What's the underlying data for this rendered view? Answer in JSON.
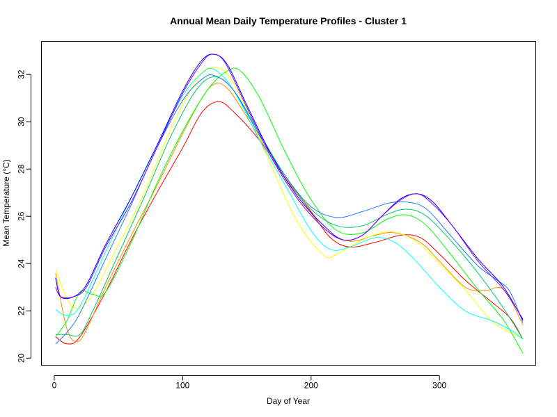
{
  "chart_data": {
    "type": "line",
    "title": "Annual Mean Daily Temperature Profiles - Cluster 1",
    "xlabel": "Day of Year",
    "ylabel": "Mean Temperature (°C)",
    "xlim": [
      -10,
      375
    ],
    "ylim": [
      19.7,
      33.4
    ],
    "x_ticks": [
      0,
      100,
      200,
      300
    ],
    "y_ticks": [
      20,
      22,
      24,
      26,
      28,
      30,
      32
    ],
    "grid": false,
    "legend": "none",
    "series": [
      {
        "color": "#FF0000",
        "points": [
          [
            1,
            20.9
          ],
          [
            10,
            20.6
          ],
          [
            20,
            20.9
          ],
          [
            40,
            22.8
          ],
          [
            60,
            25.0
          ],
          [
            80,
            27.0
          ],
          [
            100,
            28.9
          ],
          [
            115,
            30.4
          ],
          [
            128,
            30.85
          ],
          [
            140,
            30.4
          ],
          [
            160,
            29.2
          ],
          [
            180,
            27.6
          ],
          [
            200,
            26.2
          ],
          [
            215,
            25.1
          ],
          [
            230,
            24.7
          ],
          [
            250,
            24.9
          ],
          [
            270,
            25.2
          ],
          [
            285,
            25.1
          ],
          [
            300,
            24.4
          ],
          [
            320,
            23.3
          ],
          [
            340,
            22.4
          ],
          [
            355,
            21.7
          ],
          [
            365,
            20.8
          ]
        ]
      },
      {
        "color": "#FF8C00",
        "points": [
          [
            1,
            23.6
          ],
          [
            10,
            21.2
          ],
          [
            18,
            20.7
          ],
          [
            25,
            21.2
          ],
          [
            40,
            23.0
          ],
          [
            60,
            25.2
          ],
          [
            80,
            27.3
          ],
          [
            100,
            29.5
          ],
          [
            115,
            31.0
          ],
          [
            125,
            31.6
          ],
          [
            135,
            31.4
          ],
          [
            150,
            30.2
          ],
          [
            170,
            28.4
          ],
          [
            190,
            26.9
          ],
          [
            210,
            25.5
          ],
          [
            230,
            24.95
          ],
          [
            250,
            25.2
          ],
          [
            265,
            25.3
          ],
          [
            285,
            24.9
          ],
          [
            300,
            24.1
          ],
          [
            320,
            23.0
          ],
          [
            335,
            22.85
          ],
          [
            350,
            22.9
          ],
          [
            365,
            21.4
          ]
        ]
      },
      {
        "color": "#FFFF00",
        "points": [
          [
            1,
            23.75
          ],
          [
            10,
            22.5
          ],
          [
            18,
            22.1
          ],
          [
            30,
            22.7
          ],
          [
            50,
            24.8
          ],
          [
            70,
            27.0
          ],
          [
            90,
            29.6
          ],
          [
            110,
            31.7
          ],
          [
            122,
            32.3
          ],
          [
            135,
            32.0
          ],
          [
            150,
            30.5
          ],
          [
            170,
            28.0
          ],
          [
            190,
            25.7
          ],
          [
            210,
            24.35
          ],
          [
            220,
            24.4
          ],
          [
            240,
            25.0
          ],
          [
            260,
            25.35
          ],
          [
            280,
            25.0
          ],
          [
            300,
            24.0
          ],
          [
            320,
            22.9
          ],
          [
            340,
            21.6
          ],
          [
            355,
            21.1
          ],
          [
            365,
            20.85
          ]
        ]
      },
      {
        "color": "#00FF00",
        "points": [
          [
            1,
            20.9
          ],
          [
            10,
            21.6
          ],
          [
            20,
            22.8
          ],
          [
            30,
            22.7
          ],
          [
            40,
            22.8
          ],
          [
            60,
            24.9
          ],
          [
            80,
            27.4
          ],
          [
            100,
            29.6
          ],
          [
            120,
            31.4
          ],
          [
            135,
            32.15
          ],
          [
            145,
            32.15
          ],
          [
            160,
            31.0
          ],
          [
            180,
            28.7
          ],
          [
            200,
            26.7
          ],
          [
            220,
            25.4
          ],
          [
            240,
            25.3
          ],
          [
            260,
            25.9
          ],
          [
            275,
            26.05
          ],
          [
            290,
            25.6
          ],
          [
            310,
            24.3
          ],
          [
            330,
            22.9
          ],
          [
            350,
            21.6
          ],
          [
            365,
            20.2
          ]
        ]
      },
      {
        "color": "#00CC66",
        "points": [
          [
            1,
            21.0
          ],
          [
            10,
            21.0
          ],
          [
            20,
            21.0
          ],
          [
            30,
            22.0
          ],
          [
            50,
            24.4
          ],
          [
            70,
            26.8
          ],
          [
            90,
            29.3
          ],
          [
            110,
            31.3
          ],
          [
            125,
            31.9
          ],
          [
            140,
            31.3
          ],
          [
            160,
            29.5
          ],
          [
            180,
            27.7
          ],
          [
            200,
            26.3
          ],
          [
            220,
            25.6
          ],
          [
            240,
            25.6
          ],
          [
            260,
            26.1
          ],
          [
            275,
            26.3
          ],
          [
            290,
            26.0
          ],
          [
            310,
            24.9
          ],
          [
            330,
            23.6
          ],
          [
            350,
            22.1
          ],
          [
            365,
            20.8
          ]
        ]
      },
      {
        "color": "#00FFFF",
        "points": [
          [
            1,
            22.05
          ],
          [
            10,
            21.8
          ],
          [
            20,
            22.2
          ],
          [
            40,
            24.5
          ],
          [
            60,
            26.8
          ],
          [
            80,
            29.0
          ],
          [
            100,
            31.1
          ],
          [
            115,
            32.05
          ],
          [
            125,
            32.2
          ],
          [
            140,
            31.3
          ],
          [
            160,
            29.2
          ],
          [
            180,
            27.3
          ],
          [
            200,
            25.4
          ],
          [
            215,
            24.6
          ],
          [
            230,
            24.7
          ],
          [
            250,
            25.1
          ],
          [
            265,
            24.9
          ],
          [
            280,
            24.2
          ],
          [
            300,
            23.0
          ],
          [
            320,
            22.0
          ],
          [
            340,
            21.6
          ],
          [
            355,
            21.2
          ],
          [
            365,
            20.8
          ]
        ]
      },
      {
        "color": "#1E78FF",
        "points": [
          [
            1,
            20.6
          ],
          [
            10,
            21.1
          ],
          [
            20,
            21.9
          ],
          [
            40,
            24.2
          ],
          [
            60,
            26.5
          ],
          [
            80,
            28.9
          ],
          [
            100,
            30.9
          ],
          [
            115,
            31.8
          ],
          [
            125,
            31.95
          ],
          [
            140,
            31.3
          ],
          [
            160,
            29.4
          ],
          [
            180,
            27.7
          ],
          [
            200,
            26.4
          ],
          [
            220,
            25.95
          ],
          [
            240,
            26.2
          ],
          [
            260,
            26.55
          ],
          [
            275,
            26.6
          ],
          [
            290,
            26.3
          ],
          [
            310,
            25.1
          ],
          [
            330,
            23.9
          ],
          [
            345,
            23.3
          ],
          [
            355,
            22.8
          ],
          [
            365,
            21.5
          ]
        ]
      },
      {
        "color": "#0000FF",
        "points": [
          [
            1,
            23.4
          ],
          [
            5,
            22.6
          ],
          [
            15,
            22.6
          ],
          [
            25,
            23.1
          ],
          [
            40,
            24.8
          ],
          [
            60,
            26.8
          ],
          [
            80,
            29.0
          ],
          [
            100,
            31.3
          ],
          [
            115,
            32.6
          ],
          [
            125,
            32.85
          ],
          [
            135,
            32.4
          ],
          [
            150,
            30.7
          ],
          [
            170,
            28.5
          ],
          [
            190,
            26.8
          ],
          [
            210,
            25.6
          ],
          [
            225,
            25.0
          ],
          [
            240,
            25.2
          ],
          [
            255,
            26.0
          ],
          [
            270,
            26.75
          ],
          [
            283,
            26.95
          ],
          [
            295,
            26.6
          ],
          [
            310,
            25.6
          ],
          [
            330,
            24.2
          ],
          [
            350,
            23.0
          ],
          [
            365,
            21.6
          ]
        ]
      },
      {
        "color": "#7F00FF",
        "points": [
          [
            1,
            23.0
          ],
          [
            5,
            22.6
          ],
          [
            15,
            22.6
          ],
          [
            25,
            23.0
          ],
          [
            40,
            24.7
          ],
          [
            60,
            26.6
          ],
          [
            80,
            28.9
          ],
          [
            100,
            31.2
          ],
          [
            115,
            32.5
          ],
          [
            123,
            32.85
          ],
          [
            133,
            32.5
          ],
          [
            150,
            30.6
          ],
          [
            170,
            28.4
          ],
          [
            190,
            26.7
          ],
          [
            210,
            25.5
          ],
          [
            225,
            25.0
          ],
          [
            240,
            25.2
          ],
          [
            255,
            26.0
          ],
          [
            270,
            26.7
          ],
          [
            283,
            26.95
          ],
          [
            295,
            26.5
          ],
          [
            310,
            25.6
          ],
          [
            330,
            24.1
          ],
          [
            350,
            22.9
          ],
          [
            365,
            21.65
          ]
        ]
      }
    ]
  }
}
